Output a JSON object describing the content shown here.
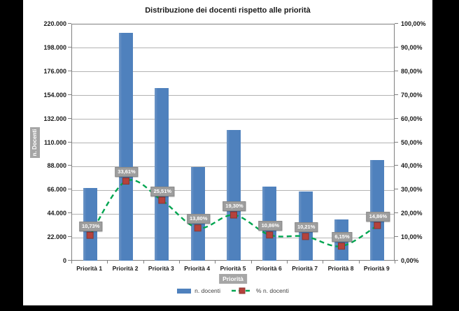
{
  "window": {
    "background": "#000000",
    "canvas_background": "#ffffff"
  },
  "chart_data": {
    "type": "bar",
    "title": "Distribuzione dei docenti rispetto alle priorità",
    "categories": [
      "Priorità 1",
      "Priorità 2",
      "Priorità 3",
      "Priorità 4",
      "Priorità 5",
      "Priorità 6",
      "Priorità 7",
      "Priorità 8",
      "Priorità 9"
    ],
    "series": [
      {
        "name": "n. docenti",
        "type": "bar",
        "axis": "left",
        "color": "#4f81bd",
        "values": [
          67500,
          211500,
          160500,
          87000,
          121500,
          68500,
          64000,
          38500,
          93500
        ]
      },
      {
        "name": "% n. docenti",
        "type": "line",
        "axis": "right",
        "color": "#00a550",
        "marker_color": "#b5423c",
        "marker_border": "#8b3530",
        "values": [
          10.73,
          33.61,
          25.51,
          13.8,
          19.3,
          10.86,
          10.21,
          6.15,
          14.86
        ],
        "labels": [
          "10,73%",
          "33,61%",
          "25,51%",
          "13,80%",
          "19,30%",
          "10,86%",
          "10,21%",
          "6,15%",
          "14,86%"
        ]
      }
    ],
    "left_axis": {
      "label": "n. Docenti",
      "min": 0,
      "max": 220000,
      "ticks": [
        "0",
        "22.000",
        "44.000",
        "66.000",
        "88.000",
        "110.000",
        "132.000",
        "154.000",
        "176.000",
        "198.000",
        "220.000"
      ]
    },
    "right_axis": {
      "min": 0,
      "max": 100,
      "ticks": [
        "0,00%",
        "10,00%",
        "20,00%",
        "30,00%",
        "40,00%",
        "50,00%",
        "60,00%",
        "70,00%",
        "80,00%",
        "90,00%",
        "100,00%"
      ]
    },
    "x_axis": {
      "label": "Priorità"
    },
    "legend_position": "bottom",
    "grid": "horizontal",
    "styles": {
      "grid_color": "#b3b3b3",
      "axis_color": "#7f7f7f",
      "tick_label_color": "#1a1a1a",
      "label_box_bg": "#9e9e9e",
      "label_box_text": "#ffffff",
      "axis_title_box_bg": "#a6a6a6"
    }
  }
}
